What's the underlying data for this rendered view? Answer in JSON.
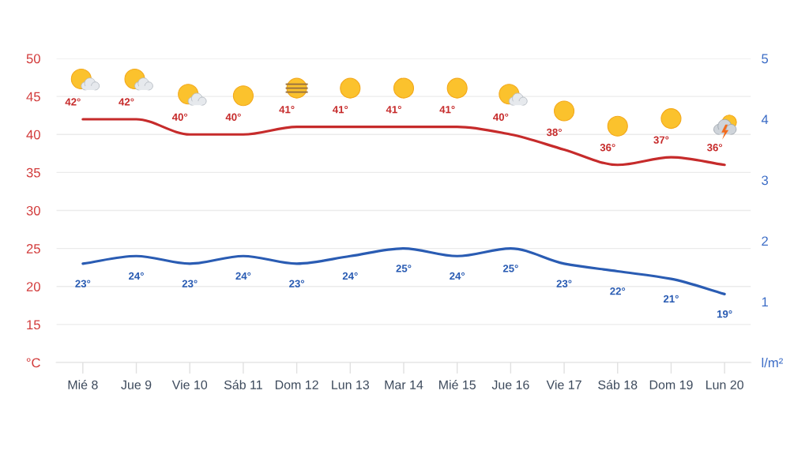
{
  "chart_data": {
    "type": "line",
    "categories": [
      "Mié 8",
      "Jue 9",
      "Vie 10",
      "Sáb 11",
      "Dom 12",
      "Lun 13",
      "Mar 14",
      "Mié 15",
      "Jue 16",
      "Vie 17",
      "Sáb 18",
      "Dom 19",
      "Lun 20"
    ],
    "series": [
      {
        "color": "#c62b2b",
        "values": [
          42,
          42,
          40,
          40,
          41,
          41,
          41,
          41,
          40,
          38,
          36,
          37,
          36
        ],
        "value_labels": [
          "42°",
          "42°",
          "40°",
          "40°",
          "41°",
          "41°",
          "41°",
          "41°",
          "40°",
          "38°",
          "36°",
          "37°",
          "36°"
        ]
      },
      {
        "color": "#2a5cb3",
        "values": [
          23,
          24,
          23,
          24,
          23,
          24,
          25,
          24,
          25,
          23,
          22,
          21,
          19
        ],
        "value_labels": [
          "23°",
          "24°",
          "23°",
          "24°",
          "23°",
          "24°",
          "25°",
          "24°",
          "25°",
          "23°",
          "22°",
          "21°",
          "19°"
        ]
      }
    ],
    "ylim": [
      10,
      50
    ],
    "yticks": [
      {
        "value": 10,
        "label": "°C"
      },
      15,
      20,
      25,
      30,
      35,
      40,
      45,
      50
    ],
    "y2lim": [
      0,
      5
    ],
    "y2ticks": [
      {
        "value": 0,
        "label": "l/m²"
      },
      1,
      2,
      3,
      4,
      5
    ],
    "grid": "y"
  }
}
